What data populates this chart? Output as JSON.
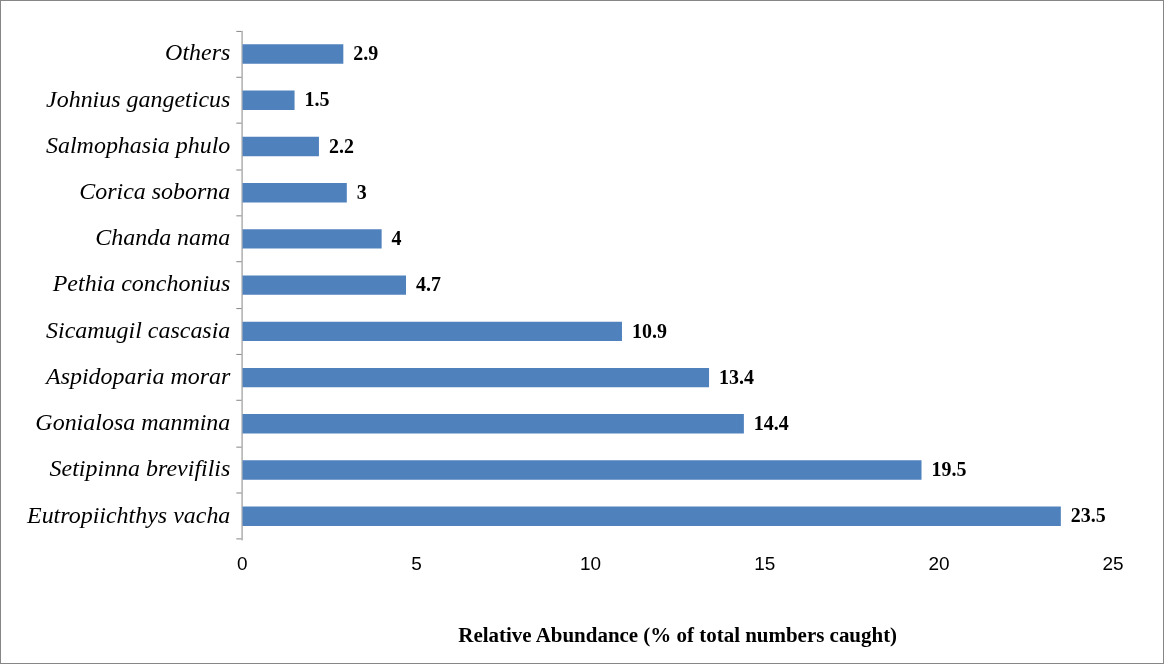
{
  "chart_data": {
    "type": "bar",
    "orientation": "horizontal",
    "xlabel": "Relative Abundance (% of total numbers caught)",
    "categories": [
      "Others",
      "Johnius gangeticus",
      "Salmophasia phulo",
      "Corica soborna",
      "Chanda nama",
      "Pethia conchonius",
      "Sicamugil cascasia",
      "Aspidoparia morar",
      "Gonialosa manmina",
      "Setipinna brevifilis",
      "Eutropiichthys vacha"
    ],
    "values": [
      2.9,
      1.5,
      2.2,
      3,
      4,
      4.7,
      10.9,
      13.4,
      14.4,
      19.5,
      23.5
    ],
    "color": "#4f81bd",
    "xlim": [
      0,
      25
    ],
    "xticks": [
      0,
      5,
      10,
      15,
      20,
      25
    ],
    "data_labels": true,
    "grid": false
  }
}
